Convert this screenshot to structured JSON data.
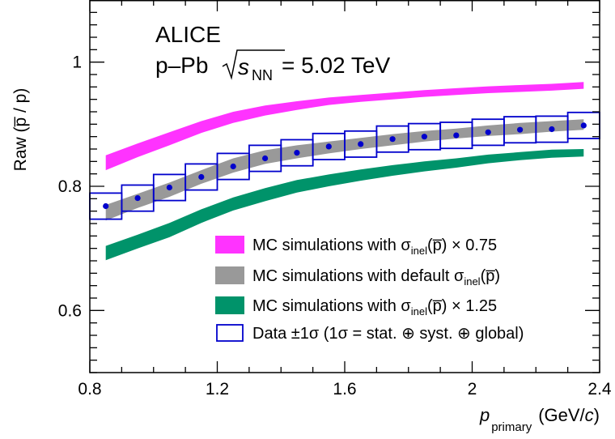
{
  "chart_data": {
    "type": "area",
    "title": "ALICE",
    "subtitle": {
      "prefix": "p–Pb",
      "sqrt_s": "s",
      "sqrt_sub": "NN",
      "value": " = 5.02 TeV"
    },
    "xlabel": {
      "symbol": "p",
      "subscript": "primary",
      "unit_open": "(GeV/",
      "unit_c": "c",
      "unit_close": ")"
    },
    "ylabel": "Raw (p̅ / p)",
    "xlim": [
      0.8,
      2.4
    ],
    "ylim": [
      0.5,
      1.1
    ],
    "xticks": [
      0.8,
      1.2,
      1.6,
      2.0,
      2.4
    ],
    "xtick_labels": [
      "0.8",
      "1.2",
      "1.6",
      "2",
      "2.4"
    ],
    "yticks": [
      0.6,
      0.8,
      1.0
    ],
    "ytick_labels": [
      "0.6",
      "0.8",
      "1"
    ],
    "grid": false,
    "legend_position": "bottom-right",
    "series": [
      {
        "name": "MC simulations with σinel(p̅) × 0.75",
        "legend": {
          "before": "MC simulations with σ",
          "sub": "inel",
          "after": "(p̅) × 0.75"
        },
        "kind": "band",
        "color": "#ff33ff",
        "x": [
          0.85,
          0.95,
          1.05,
          1.15,
          1.25,
          1.35,
          1.45,
          1.55,
          1.65,
          1.75,
          1.85,
          1.95,
          2.05,
          2.15,
          2.25,
          2.35
        ],
        "low": [
          0.826,
          0.847,
          0.866,
          0.886,
          0.902,
          0.914,
          0.923,
          0.931,
          0.936,
          0.94,
          0.944,
          0.947,
          0.95,
          0.952,
          0.954,
          0.957
        ],
        "high": [
          0.85,
          0.869,
          0.887,
          0.905,
          0.92,
          0.93,
          0.937,
          0.943,
          0.947,
          0.951,
          0.955,
          0.958,
          0.961,
          0.963,
          0.965,
          0.968
        ]
      },
      {
        "name": "MC simulations with default σinel(p̅)",
        "legend": {
          "before": "MC simulations with default σ",
          "sub": "inel",
          "after": "(p̅)"
        },
        "kind": "band",
        "color": "#999999",
        "x": [
          0.85,
          0.95,
          1.05,
          1.15,
          1.25,
          1.35,
          1.45,
          1.55,
          1.65,
          1.75,
          1.85,
          1.95,
          2.05,
          2.15,
          2.25,
          2.35
        ],
        "low": [
          0.745,
          0.765,
          0.783,
          0.804,
          0.822,
          0.836,
          0.845,
          0.853,
          0.86,
          0.866,
          0.872,
          0.877,
          0.881,
          0.884,
          0.888,
          0.891
        ],
        "high": [
          0.77,
          0.788,
          0.806,
          0.826,
          0.845,
          0.858,
          0.866,
          0.872,
          0.878,
          0.884,
          0.889,
          0.893,
          0.898,
          0.902,
          0.905,
          0.908
        ]
      },
      {
        "name": "MC simulations with σinel(p̅) × 1.25",
        "legend": {
          "before": "MC simulations with σ",
          "sub": "inel",
          "after": "(p̅) × 1.25"
        },
        "kind": "band",
        "color": "#00936a",
        "x": [
          0.85,
          0.95,
          1.05,
          1.15,
          1.25,
          1.35,
          1.45,
          1.55,
          1.65,
          1.75,
          1.85,
          1.95,
          2.05,
          2.15,
          2.25,
          2.35
        ],
        "low": [
          0.681,
          0.7,
          0.718,
          0.741,
          0.761,
          0.776,
          0.79,
          0.8,
          0.809,
          0.817,
          0.824,
          0.83,
          0.837,
          0.842,
          0.846,
          0.848
        ],
        "high": [
          0.704,
          0.722,
          0.741,
          0.763,
          0.782,
          0.797,
          0.81,
          0.819,
          0.827,
          0.834,
          0.84,
          0.845,
          0.851,
          0.855,
          0.859,
          0.86
        ]
      },
      {
        "name": "Data ±1σ (1σ = stat. ⊕ syst. ⊕ global)",
        "legend": {
          "before": "Data ±1σ (1σ = stat. ⊕ syst. ⊕ global)",
          "sub": "",
          "after": ""
        },
        "kind": "points_boxes",
        "color": "#0000cc",
        "x": [
          0.85,
          0.95,
          1.05,
          1.15,
          1.25,
          1.35,
          1.45,
          1.55,
          1.65,
          1.75,
          1.85,
          1.95,
          2.05,
          2.15,
          2.25,
          2.35
        ],
        "xerr": 0.05,
        "y": [
          0.768,
          0.781,
          0.798,
          0.815,
          0.832,
          0.845,
          0.854,
          0.864,
          0.868,
          0.876,
          0.88,
          0.882,
          0.887,
          0.891,
          0.892,
          0.898
        ],
        "yerr": [
          0.021,
          0.021,
          0.021,
          0.021,
          0.021,
          0.021,
          0.021,
          0.021,
          0.021,
          0.021,
          0.021,
          0.021,
          0.021,
          0.021,
          0.021,
          0.021
        ]
      }
    ]
  }
}
